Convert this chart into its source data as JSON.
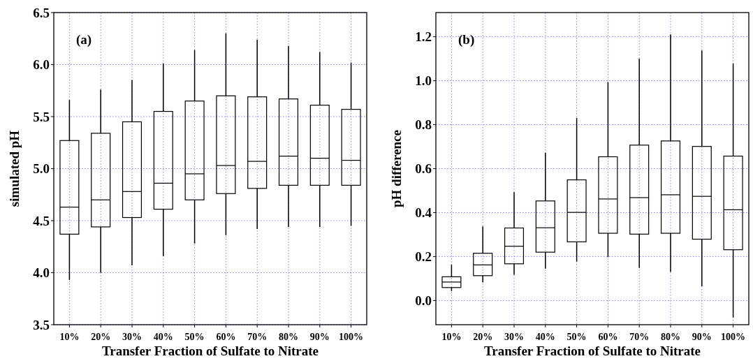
{
  "chart_data": [
    {
      "type": "box",
      "ylabel": "simulated pH",
      "xlabel": "Transfer Fraction of Sulfate to Nitrate",
      "annotations": [
        "(a)"
      ],
      "categories": [
        "10%",
        "20%",
        "30%",
        "40%",
        "50%",
        "60%",
        "70%",
        "80%",
        "90%",
        "100%"
      ],
      "ylim": [
        3.5,
        6.5
      ],
      "yticks": [
        {
          "value": 3.5,
          "label": "3.5"
        },
        {
          "value": 4,
          "label": "4.0"
        },
        {
          "value": 4.5,
          "label": "4.5"
        },
        {
          "value": 5,
          "label": "5.0"
        },
        {
          "value": 5.5,
          "label": "5.5"
        },
        {
          "value": 6,
          "label": "6.0"
        },
        {
          "value": 6.5,
          "label": "6.5"
        }
      ],
      "grid": true,
      "color": "#000000",
      "boxes": [
        {
          "low": 3.93,
          "q1": 4.37,
          "median": 4.63,
          "q3": 5.27,
          "high": 5.66
        },
        {
          "low": 4.0,
          "q1": 4.44,
          "median": 4.7,
          "q3": 5.34,
          "high": 5.76
        },
        {
          "low": 4.07,
          "q1": 4.53,
          "median": 4.78,
          "q3": 5.45,
          "high": 5.85
        },
        {
          "low": 4.16,
          "q1": 4.61,
          "median": 4.86,
          "q3": 5.55,
          "high": 6.01
        },
        {
          "low": 4.28,
          "q1": 4.7,
          "median": 4.95,
          "q3": 5.65,
          "high": 6.14
        },
        {
          "low": 4.36,
          "q1": 4.76,
          "median": 5.03,
          "q3": 5.7,
          "high": 6.3
        },
        {
          "low": 4.42,
          "q1": 4.81,
          "median": 5.07,
          "q3": 5.69,
          "high": 6.24
        },
        {
          "low": 4.44,
          "q1": 4.84,
          "median": 5.12,
          "q3": 5.67,
          "high": 6.18
        },
        {
          "low": 4.44,
          "q1": 4.84,
          "median": 5.1,
          "q3": 5.61,
          "high": 6.12
        },
        {
          "low": 4.45,
          "q1": 4.84,
          "median": 5.08,
          "q3": 5.57,
          "high": 6.02
        }
      ]
    },
    {
      "type": "box",
      "ylabel": "pH difference",
      "xlabel": "Transfer Fraction of Sulfate to Nitrate",
      "annotations": [
        "(b)"
      ],
      "categories": [
        "10%",
        "20%",
        "30%",
        "40%",
        "50%",
        "60%",
        "70%",
        "80%",
        "90%",
        "100%"
      ],
      "ylim": [
        -0.11,
        1.31
      ],
      "yticks": [
        {
          "value": 0,
          "label": "0.0"
        },
        {
          "value": 0.2,
          "label": "0.2"
        },
        {
          "value": 0.4,
          "label": "0.4"
        },
        {
          "value": 0.6,
          "label": "0.6"
        },
        {
          "value": 0.8,
          "label": "0.8"
        },
        {
          "value": 1,
          "label": "1.0"
        },
        {
          "value": 1.2,
          "label": "1.2"
        }
      ],
      "grid": true,
      "color": "#000000",
      "boxes": [
        {
          "low": 0.043,
          "q1": 0.059,
          "median": 0.084,
          "q3": 0.108,
          "high": 0.163
        },
        {
          "low": 0.082,
          "q1": 0.113,
          "median": 0.162,
          "q3": 0.215,
          "high": 0.337
        },
        {
          "low": 0.117,
          "q1": 0.167,
          "median": 0.247,
          "q3": 0.33,
          "high": 0.493
        },
        {
          "low": 0.145,
          "q1": 0.22,
          "median": 0.331,
          "q3": 0.453,
          "high": 0.672
        },
        {
          "low": 0.177,
          "q1": 0.267,
          "median": 0.401,
          "q3": 0.549,
          "high": 0.831
        },
        {
          "low": 0.197,
          "q1": 0.306,
          "median": 0.462,
          "q3": 0.654,
          "high": 0.994
        },
        {
          "low": 0.148,
          "q1": 0.302,
          "median": 0.468,
          "q3": 0.707,
          "high": 1.1
        },
        {
          "low": 0.13,
          "q1": 0.306,
          "median": 0.481,
          "q3": 0.726,
          "high": 1.211
        },
        {
          "low": 0.065,
          "q1": 0.279,
          "median": 0.474,
          "q3": 0.701,
          "high": 1.138
        },
        {
          "low": -0.077,
          "q1": 0.231,
          "median": 0.413,
          "q3": 0.657,
          "high": 1.078
        }
      ]
    }
  ]
}
